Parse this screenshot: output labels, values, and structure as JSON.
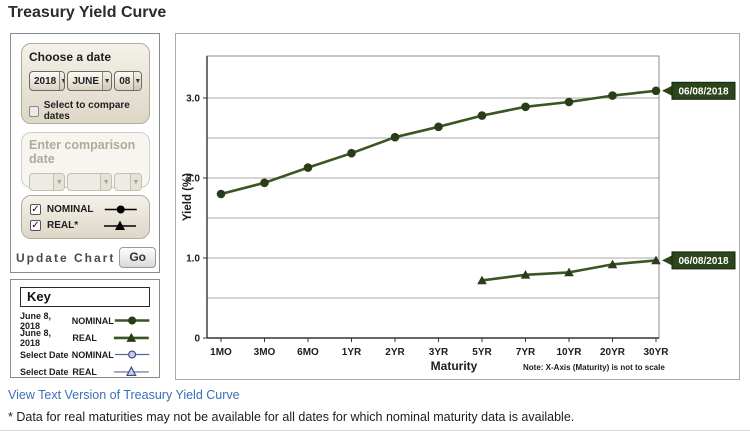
{
  "page": {
    "title": "Treasury Yield Curve",
    "link": "View Text Version of Treasury Yield Curve",
    "footnote": "* Data for real maturities may not be available for all dates for which nominal maturity data is available."
  },
  "controls": {
    "choose_date": {
      "title": "Choose a date",
      "year": "2018",
      "month": "JUNE",
      "day": "08",
      "compare_checkbox_label": "Select to compare dates"
    },
    "comparison": {
      "title": "Enter comparison date"
    },
    "series_toggles": {
      "nominal_label": "NOMINAL",
      "real_label": "REAL*"
    },
    "update": {
      "label": "Update Chart",
      "go": "Go"
    }
  },
  "key": {
    "title": "Key",
    "rows": [
      {
        "date": "June 8, 2018",
        "series": "NOMINAL"
      },
      {
        "date": "June 8, 2018",
        "series": "REAL"
      },
      {
        "date": "Select Date",
        "series": "NOMINAL"
      },
      {
        "date": "Select Date",
        "series": "REAL"
      }
    ]
  },
  "colors": {
    "curve_green": "#3a5624",
    "marker_green": "#273e18",
    "tag_green": "#2c461c",
    "inactive_blue": "#5a68a0",
    "inactive_fill": "#c8cce8",
    "link_blue": "#3b6fb5"
  },
  "chart_data": {
    "type": "line",
    "title": "",
    "categories": [
      "1MO",
      "3MO",
      "6MO",
      "1YR",
      "2YR",
      "3YR",
      "5YR",
      "7YR",
      "10YR",
      "20YR",
      "30YR"
    ],
    "series": [
      {
        "name": "Nominal yield curve 06/08/2018",
        "tag": "06/08/2018",
        "color": "#3a5624",
        "marker": "circle",
        "values": [
          1.8,
          1.94,
          2.13,
          2.31,
          2.51,
          2.64,
          2.78,
          2.89,
          2.95,
          3.03,
          3.09
        ]
      },
      {
        "name": "Real yield curve 06/08/2018",
        "tag": "06/08/2018",
        "color": "#3a5624",
        "marker": "triangle",
        "values": [
          null,
          null,
          null,
          null,
          null,
          null,
          0.72,
          0.79,
          0.82,
          0.92,
          0.97
        ]
      }
    ],
    "xlabel": "Maturity",
    "x_note": "Note: X-Axis (Maturity) is not to scale",
    "ylabel": "Yield (%)",
    "ylim": [
      0,
      3.5
    ],
    "yticks": [
      {
        "v": 0,
        "label": "0"
      },
      {
        "v": 1,
        "label": "1.0"
      },
      {
        "v": 2,
        "label": "2.0"
      },
      {
        "v": 3,
        "label": "3.0"
      }
    ],
    "grid_step": 0.5,
    "grid": true,
    "legend_position": "external-key-panel"
  }
}
